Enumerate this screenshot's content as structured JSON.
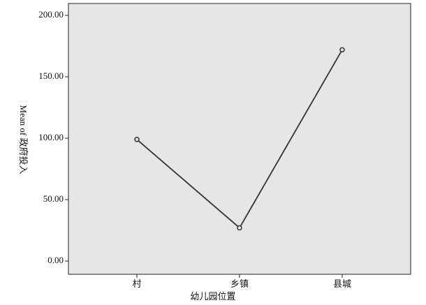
{
  "chart_data": {
    "type": "line",
    "x_label": "幼儿园位置",
    "y_label": "Mean of 政府投入",
    "categories": [
      "村",
      "乡镇",
      "县城"
    ],
    "series": [
      {
        "name": "Mean of 政府投入",
        "color": "#333333",
        "values": [
          99,
          27,
          172
        ]
      }
    ],
    "ylim": [
      -10.8,
      209.7
    ],
    "yticks": [
      {
        "value": 0,
        "label": "0.00"
      },
      {
        "value": 50,
        "label": "50.00"
      },
      {
        "value": 100,
        "label": "100.00"
      },
      {
        "value": 150,
        "label": "150.00"
      },
      {
        "value": 200,
        "label": "200.00"
      }
    ],
    "grid": false
  }
}
